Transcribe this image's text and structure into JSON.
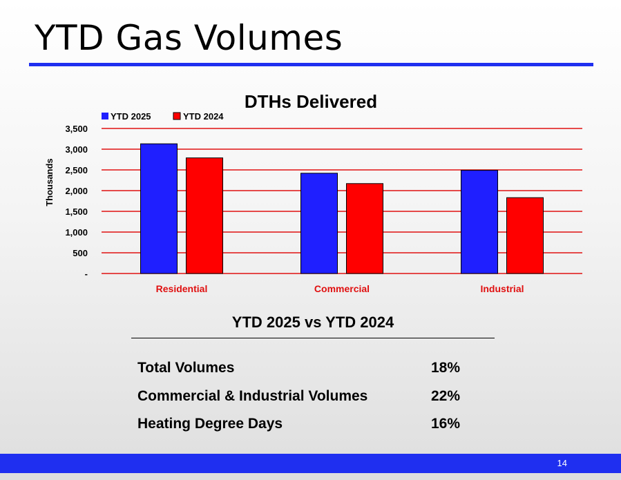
{
  "slide": {
    "title": "YTD Gas Volumes",
    "page_number": "14",
    "accent_color": "#1f2ff0"
  },
  "chart_data": {
    "type": "bar",
    "title": "DTHs Delivered",
    "ylabel": "Thousands",
    "xlabel": "",
    "categories": [
      "Residential",
      "Commercial",
      "Industrial"
    ],
    "series": [
      {
        "name": "YTD 2025",
        "color": "#1f1fff",
        "values": [
          3130,
          2420,
          2490
        ]
      },
      {
        "name": "YTD 2024",
        "color": "#ff0000",
        "values": [
          2790,
          2170,
          1830
        ]
      }
    ],
    "ylim": [
      0,
      3500
    ],
    "yticks": [
      0,
      500,
      1000,
      1500,
      2000,
      2500,
      3000,
      3500
    ],
    "ytick_labels": [
      "-",
      "500",
      "1,000",
      "1,500",
      "2,000",
      "2,500",
      "3,000",
      "3,500"
    ],
    "grid": true,
    "grid_color": "#e01010",
    "category_label_color": "#e01010",
    "legend_position": "top-left"
  },
  "comparison": {
    "title": "YTD 2025 vs YTD 2024",
    "rows": [
      {
        "label": "Total Volumes",
        "value": "18%"
      },
      {
        "label": "Commercial & Industrial Volumes",
        "value": "22%"
      },
      {
        "label": "Heating Degree Days",
        "value": "16%"
      }
    ]
  }
}
